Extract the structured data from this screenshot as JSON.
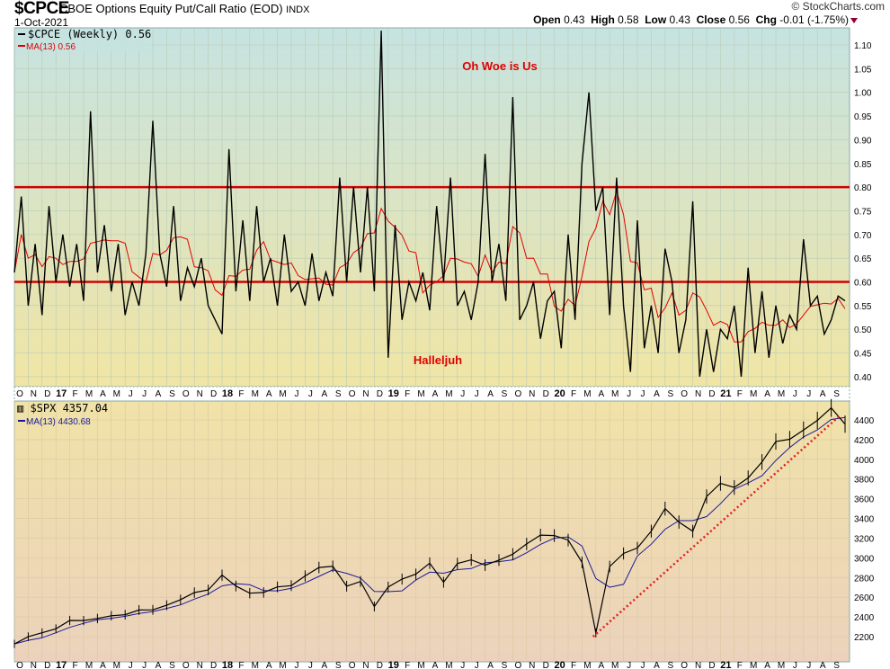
{
  "header": {
    "symbol": "$CPCE",
    "description": "CBOE Options Equity Put/Call Ratio (EOD)",
    "exchange": "INDX",
    "date": "1-Oct-2021",
    "brand": "© StockCharts.com",
    "open_label": "Open",
    "open": "0.43",
    "high_label": "High",
    "high": "0.58",
    "low_label": "Low",
    "low": "0.43",
    "close_label": "Close",
    "close": "0.56",
    "chg_label": "Chg",
    "chg": "-0.01 (-1.75%)"
  },
  "colors": {
    "price": "#000000",
    "ma_top": "#e00000",
    "ma_bottom": "#1a1a9a",
    "hline": "#d00000",
    "trend": "#e02020"
  },
  "chart_data": [
    {
      "type": "line",
      "title": "$CPCE (Weekly) 0.56",
      "legend": [
        "$CPCE (Weekly) 0.56",
        "MA(13) 0.56"
      ],
      "ylim": [
        0.37,
        1.14
      ],
      "yticks": [
        "1.10",
        "1.05",
        "1.00",
        "0.95",
        "0.90",
        "0.85",
        "0.80",
        "0.75",
        "0.70",
        "0.65",
        "0.60",
        "0.55",
        "0.50",
        "0.45",
        "0.40"
      ],
      "hlines": [
        0.8,
        0.6
      ],
      "annotations": [
        "Oh Woe is Us",
        "Halleljuh"
      ],
      "values": [
        0.62,
        0.78,
        0.55,
        0.68,
        0.53,
        0.76,
        0.6,
        0.7,
        0.59,
        0.68,
        0.56,
        0.96,
        0.62,
        0.72,
        0.58,
        0.68,
        0.53,
        0.6,
        0.55,
        0.66,
        0.94,
        0.66,
        0.59,
        0.76,
        0.56,
        0.63,
        0.59,
        0.65,
        0.55,
        0.52,
        0.49,
        0.88,
        0.58,
        0.73,
        0.56,
        0.76,
        0.6,
        0.65,
        0.55,
        0.7,
        0.58,
        0.6,
        0.55,
        0.66,
        0.56,
        0.62,
        0.57,
        0.82,
        0.6,
        0.8,
        0.62,
        0.8,
        0.58,
        1.13,
        0.44,
        0.72,
        0.52,
        0.6,
        0.56,
        0.62,
        0.54,
        0.76,
        0.6,
        0.82,
        0.55,
        0.58,
        0.52,
        0.6,
        0.87,
        0.6,
        0.68,
        0.56,
        0.99,
        0.52,
        0.55,
        0.6,
        0.48,
        0.56,
        0.58,
        0.46,
        0.7,
        0.52,
        0.85,
        1.0,
        0.75,
        0.8,
        0.53,
        0.82,
        0.55,
        0.41,
        0.73,
        0.46,
        0.55,
        0.45,
        0.67,
        0.6,
        0.45,
        0.52,
        0.77,
        0.4,
        0.5,
        0.41,
        0.5,
        0.48,
        0.55,
        0.4,
        0.63,
        0.45,
        0.58,
        0.44,
        0.55,
        0.47,
        0.53,
        0.5,
        0.69,
        0.55,
        0.57,
        0.49,
        0.52,
        0.57,
        0.56
      ]
    },
    {
      "type": "line",
      "title": "$SPX 4357.04",
      "legend": [
        "$SPX 4357.04",
        "MA(13) 4430.68"
      ],
      "ylim": [
        2080,
        4560
      ],
      "yticks": [
        "4400",
        "4200",
        "4000",
        "3800",
        "3600",
        "3400",
        "3200",
        "3000",
        "2800",
        "2600",
        "2400",
        "2200"
      ],
      "values": [
        2126,
        2199,
        2239,
        2279,
        2364,
        2363,
        2384,
        2412,
        2423,
        2470,
        2472,
        2519,
        2575,
        2647,
        2674,
        2824,
        2714,
        2641,
        2648,
        2705,
        2718,
        2816,
        2902,
        2914,
        2712,
        2760,
        2506,
        2704,
        2784,
        2834,
        2946,
        2752,
        2942,
        2980,
        2926,
        2977,
        3037,
        3141,
        3231,
        3226,
        3180,
        2954,
        2237,
        2912,
        3044,
        3100,
        3271,
        3500,
        3363,
        3270,
        3622,
        3756,
        3714,
        3811,
        3973,
        4181,
        4204,
        4298,
        4395,
        4522,
        4357
      ],
      "trendline": {
        "from": [
          "Mar 2020",
          2200
        ],
        "to": [
          "Sep 2021",
          4440
        ]
      }
    }
  ],
  "x_ticks": [
    "O",
    "N",
    "D",
    "17",
    "F",
    "M",
    "A",
    "M",
    "J",
    "J",
    "A",
    "S",
    "O",
    "N",
    "D",
    "18",
    "F",
    "M",
    "A",
    "M",
    "J",
    "J",
    "A",
    "S",
    "O",
    "N",
    "D",
    "19",
    "F",
    "M",
    "A",
    "M",
    "J",
    "J",
    "A",
    "S",
    "O",
    "N",
    "D",
    "20",
    "F",
    "M",
    "A",
    "M",
    "J",
    "J",
    "A",
    "S",
    "O",
    "N",
    "D",
    "21",
    "F",
    "M",
    "A",
    "M",
    "J",
    "J",
    "A",
    "S"
  ]
}
